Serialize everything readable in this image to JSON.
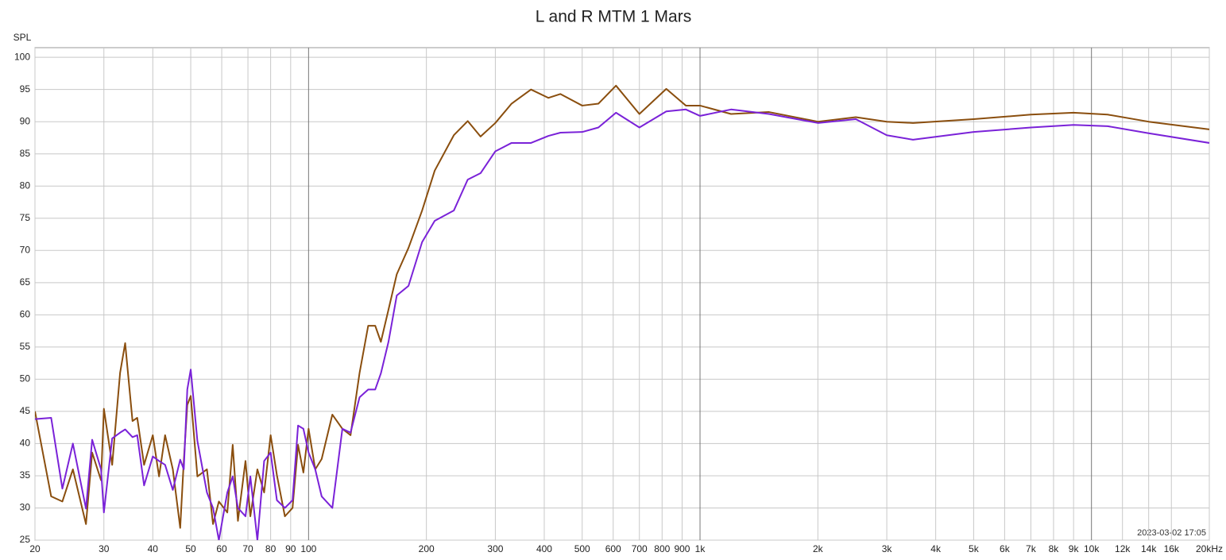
{
  "chart_data": {
    "type": "line",
    "title": "L and R MTM 1 Mars",
    "y_label": "SPL",
    "annotation": "2023-03-02 17:05",
    "log_x": true,
    "grid": true,
    "xlim": [
      20,
      20000
    ],
    "ylim": [
      25,
      101.5
    ],
    "yticks": [
      25,
      30,
      35,
      40,
      45,
      50,
      55,
      60,
      65,
      70,
      75,
      80,
      85,
      90,
      95,
      100
    ],
    "xticks": [
      20,
      30,
      40,
      50,
      60,
      70,
      80,
      90,
      100,
      200,
      300,
      400,
      500,
      600,
      700,
      800,
      900,
      {
        "value": 1000,
        "label": "1k"
      },
      {
        "value": 2000,
        "label": "2k"
      },
      {
        "value": 3000,
        "label": "3k"
      },
      {
        "value": 4000,
        "label": "4k"
      },
      {
        "value": 5000,
        "label": "5k"
      },
      {
        "value": 6000,
        "label": "6k"
      },
      {
        "value": 7000,
        "label": "7k"
      },
      {
        "value": 8000,
        "label": "8k"
      },
      {
        "value": 9000,
        "label": "9k"
      },
      {
        "value": 10000,
        "label": "10k"
      },
      {
        "value": 12000,
        "label": "12k"
      },
      {
        "value": 14000,
        "label": "14k"
      },
      {
        "value": 16000,
        "label": "16k"
      },
      {
        "value": 20000,
        "label": "20kHz"
      }
    ],
    "x": [
      20,
      22,
      23.5,
      25,
      27,
      28,
      29.5,
      30,
      31.5,
      33,
      34,
      35.5,
      36.5,
      38,
      40,
      41.5,
      43,
      45,
      47,
      48,
      49,
      50,
      52,
      55,
      57,
      59,
      62,
      64,
      66,
      69,
      71,
      74,
      77,
      80,
      83,
      87,
      91,
      94,
      97,
      100,
      104,
      108,
      115,
      122,
      128,
      135,
      142,
      148,
      153,
      160,
      168,
      180,
      195,
      210,
      235,
      255,
      275,
      300,
      330,
      370,
      410,
      440,
      500,
      550,
      610,
      700,
      820,
      920,
      1000,
      1200,
      1500,
      2000,
      2500,
      3000,
      3500,
      5000,
      7000,
      9000,
      11000,
      14000,
      20000
    ],
    "series": [
      {
        "color": "#8a4e0e",
        "values": [
          45,
          31.8,
          31,
          36,
          27.5,
          38.6,
          34.3,
          45.4,
          36.7,
          51,
          55.6,
          43.5,
          44,
          36.7,
          41.3,
          34.9,
          41.3,
          36,
          26.9,
          37.3,
          46,
          47.4,
          34.9,
          36,
          27.5,
          31,
          29.3,
          39.8,
          28,
          37.3,
          28.7,
          36,
          32.4,
          41.3,
          35.1,
          28.7,
          30,
          39.8,
          35.5,
          42.3,
          36,
          37.6,
          44.5,
          42.3,
          41.3,
          51,
          58.3,
          58.3,
          55.8,
          60.8,
          66.3,
          70.4,
          76.2,
          82.4,
          87.9,
          90.1,
          87.7,
          89.8,
          92.8,
          95,
          93.7,
          94.3,
          92.5,
          92.8,
          95.6,
          91.2,
          95.1,
          92.5,
          92.5,
          91.2,
          91.5,
          90,
          90.7,
          90,
          89.8,
          90.4,
          91.1,
          91.4,
          91.1,
          90,
          88.8
        ]
      },
      {
        "color": "#7a22d8",
        "values": [
          43.8,
          44,
          33,
          40,
          29.9,
          40.6,
          36,
          29.3,
          40.8,
          41.7,
          42.2,
          41,
          41.3,
          33.5,
          38,
          37.3,
          36.7,
          32.8,
          37.5,
          36,
          48.4,
          51.5,
          40.4,
          32.4,
          30,
          25,
          32.4,
          34.9,
          30,
          28.7,
          34.9,
          25,
          37.3,
          38.6,
          31.2,
          30,
          31.2,
          42.8,
          42.3,
          38.6,
          36,
          31.8,
          30,
          42.3,
          41.7,
          47.2,
          48.4,
          48.4,
          50.9,
          55.8,
          63,
          64.5,
          71.3,
          74.6,
          76.2,
          81,
          82,
          85.4,
          86.7,
          86.7,
          87.8,
          88.3,
          88.4,
          89.1,
          91.4,
          89.1,
          91.6,
          91.9,
          90.9,
          91.9,
          91.2,
          89.8,
          90.4,
          87.9,
          87.2,
          88.4,
          89.1,
          89.5,
          89.3,
          88.2,
          86.7
        ]
      }
    ]
  }
}
